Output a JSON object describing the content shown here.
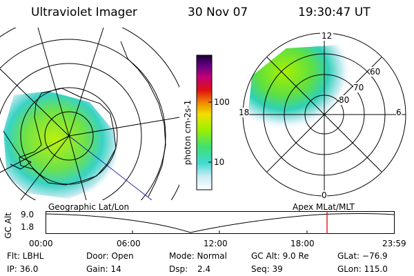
{
  "header": {
    "title": "Ultraviolet Imager",
    "date": "30 Nov 07",
    "time": "19:30:47 UT"
  },
  "colorbar": {
    "label": "photon cm-2s-1",
    "ticks": [
      "100",
      "10"
    ]
  },
  "polar_plot": {
    "mlt_labels": {
      "top": "12",
      "left": "18",
      "right": "6",
      "bottom": "0"
    },
    "lat_labels": [
      "60",
      "70",
      "80"
    ]
  },
  "timeline": {
    "left_label": "Geographic Lat/Lon",
    "right_label": "Apex MLat/MLT",
    "axis_title": "GC Alt",
    "y_top": "9.0",
    "y_bottom": "1.8",
    "x_ticks": [
      "00:00",
      "06:00",
      "12:00",
      "18:00",
      "23:59"
    ],
    "marker_color": "#e00000"
  },
  "info": {
    "row1": {
      "filter": "Flt: LBHL",
      "door": "Door: Open",
      "mode": "Mode: Normal",
      "gc_alt": "GC Alt: 9.0 Re",
      "glat": "GLat: −76.9"
    },
    "row2": {
      "ip": "IP: 36.0",
      "gain": "Gain: 14",
      "dsp_label": "Dsp:",
      "dsp_value": "2.4",
      "seq": "Seq: 39",
      "glon": "GLon: 115.0"
    }
  }
}
